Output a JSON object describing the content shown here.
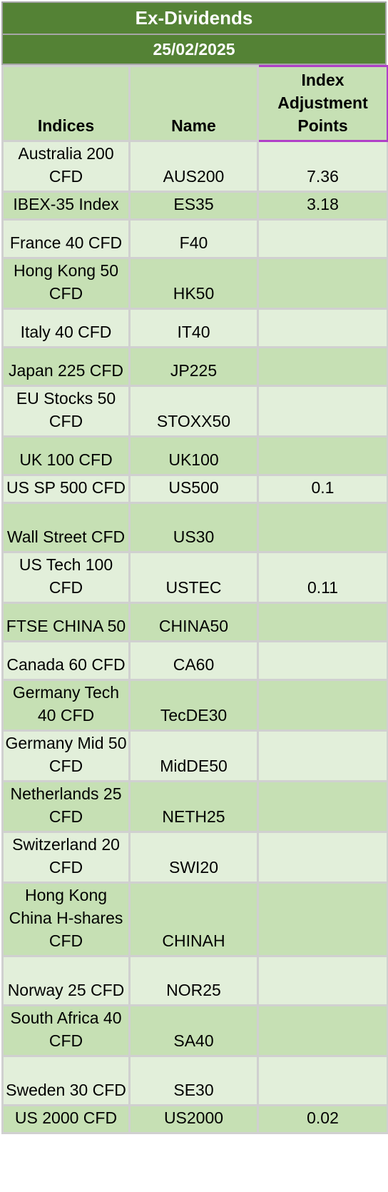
{
  "title": "Ex-Dividends",
  "date": "25/02/2025",
  "columns": [
    "Indices",
    "Name",
    "Index Adjustment Points"
  ],
  "rows": [
    {
      "index": "Australia 200 CFD",
      "name": "AUS200",
      "points": "7.36"
    },
    {
      "index": "IBEX-35 Index",
      "name": "ES35",
      "points": "3.18"
    },
    {
      "index": "France 40 CFD",
      "name": "F40",
      "points": ""
    },
    {
      "index": "Hong Kong 50 CFD",
      "name": "HK50",
      "points": ""
    },
    {
      "index": "Italy 40 CFD",
      "name": "IT40",
      "points": ""
    },
    {
      "index": "Japan 225 CFD",
      "name": "JP225",
      "points": ""
    },
    {
      "index": "EU Stocks 50 CFD",
      "name": "STOXX50",
      "points": ""
    },
    {
      "index": "UK 100 CFD",
      "name": "UK100",
      "points": ""
    },
    {
      "index": "US SP 500 CFD",
      "name": "US500",
      "points": "0.1"
    },
    {
      "index": "Wall Street CFD",
      "name": "US30",
      "points": ""
    },
    {
      "index": "US Tech 100 CFD",
      "name": "USTEC",
      "points": "0.11"
    },
    {
      "index": "FTSE CHINA 50",
      "name": "CHINA50",
      "points": ""
    },
    {
      "index": "Canada 60 CFD",
      "name": "CA60",
      "points": ""
    },
    {
      "index": "Germany Tech 40 CFD",
      "name": "TecDE30",
      "points": ""
    },
    {
      "index": "Germany Mid 50 CFD",
      "name": "MidDE50",
      "points": ""
    },
    {
      "index": "Netherlands 25 CFD",
      "name": "NETH25",
      "points": ""
    },
    {
      "index": "Switzerland 20 CFD",
      "name": "SWI20",
      "points": ""
    },
    {
      "index": "Hong Kong China H-shares CFD",
      "name": "CHINAH",
      "points": ""
    },
    {
      "index": "Norway 25 CFD",
      "name": "NOR25",
      "points": ""
    },
    {
      "index": "South Africa 40 CFD",
      "name": "SA40",
      "points": ""
    },
    {
      "index": "Sweden 30 CFD",
      "name": "SE30",
      "points": ""
    },
    {
      "index": "US 2000 CFD",
      "name": "US2000",
      "points": "0.02"
    }
  ]
}
